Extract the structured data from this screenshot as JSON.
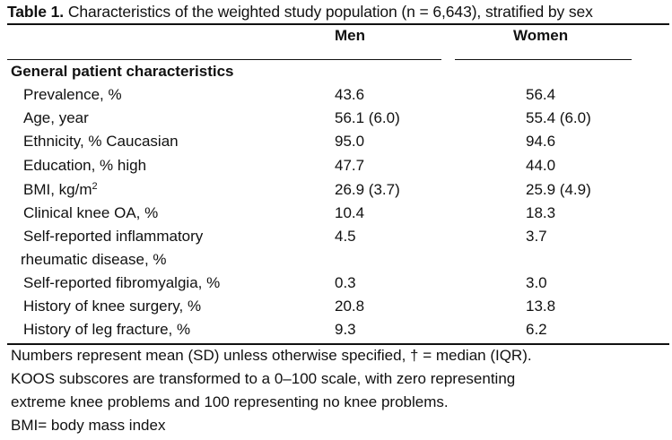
{
  "table": {
    "caption_label": "Table 1.",
    "caption_text": " Characteristics of the weighted study population (n = 6,643), stratified by sex",
    "columns": {
      "men": "Men",
      "women": "Women"
    },
    "section": "General patient characteristics",
    "rows": [
      {
        "label": "Prevalence, %",
        "men": "43.6",
        "women": "56.4"
      },
      {
        "label": "Age, year",
        "men": "56.1 (6.0)",
        "women": "55.4 (6.0)"
      },
      {
        "label": "Ethnicity, % Caucasian",
        "men": "95.0",
        "women": "94.6"
      },
      {
        "label": "Education, % high",
        "men": "47.7",
        "women": "44.0"
      },
      {
        "label": "BMI, kg/m",
        "label_sup": "2",
        "men": "26.9 (3.7)",
        "women": "25.9 (4.9)"
      },
      {
        "label": "Clinical knee OA, %",
        "men": "10.4",
        "women": "18.3"
      },
      {
        "label": "Self-reported inflammatory",
        "label_line2": "rheumatic disease, %",
        "men": "4.5",
        "women": "3.7"
      },
      {
        "label": "Self-reported fibromyalgia, %",
        "men": "0.3",
        "women": "3.0"
      },
      {
        "label": "History of knee surgery, %",
        "men": "20.8",
        "women": "13.8"
      },
      {
        "label": "History of leg fracture, %",
        "men": "9.3",
        "women": "6.2"
      }
    ]
  },
  "footnotes": [
    "Numbers represent mean (SD) unless otherwise specified, † = median (IQR).",
    "KOOS subscores are transformed to a 0–100 scale, with zero representing",
    "extreme knee problems and 100 representing no knee problems.",
    "BMI= body mass index"
  ]
}
